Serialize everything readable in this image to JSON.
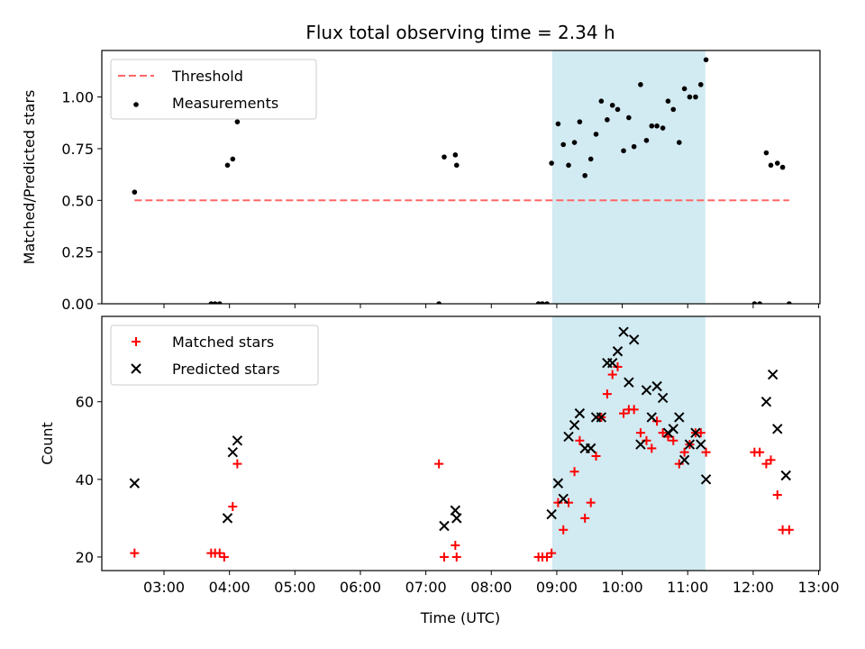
{
  "title": "Flux total observing time = 2.34 h",
  "xlabel": "Time (UTC)",
  "highlight": {
    "start_hour": 8.93,
    "end_hour": 11.27,
    "color": "#add8e6"
  },
  "x_ticks": [
    {
      "hour": 3,
      "label": "03:00"
    },
    {
      "hour": 4,
      "label": "04:00"
    },
    {
      "hour": 5,
      "label": "05:00"
    },
    {
      "hour": 6,
      "label": "06:00"
    },
    {
      "hour": 7,
      "label": "07:00"
    },
    {
      "hour": 8,
      "label": "08:00"
    },
    {
      "hour": 9,
      "label": "09:00"
    },
    {
      "hour": 10,
      "label": "10:00"
    },
    {
      "hour": 11,
      "label": "11:00"
    },
    {
      "hour": 12,
      "label": "12:00"
    },
    {
      "hour": 13,
      "label": "13:00"
    }
  ],
  "chart_data": [
    {
      "type": "scatter",
      "ylabel": "Matched/Predicted stars",
      "xlim": [
        2.05,
        13.02
      ],
      "ylim": [
        0,
        1.225
      ],
      "y_ticks": [
        {
          "value": 0.0,
          "label": "0.00"
        },
        {
          "value": 0.25,
          "label": "0.25"
        },
        {
          "value": 0.5,
          "label": "0.50"
        },
        {
          "value": 0.75,
          "label": "0.75"
        },
        {
          "value": 1.0,
          "label": "1.00"
        }
      ],
      "legend": {
        "position": "top-left",
        "entries": [
          "Threshold",
          "Measurements"
        ]
      },
      "threshold": {
        "name": "Threshold",
        "value": 0.5,
        "x_range": [
          2.55,
          12.55
        ],
        "color": "#ff6666"
      },
      "series": [
        {
          "name": "Measurements",
          "color": "#000000",
          "points": [
            [
              2.55,
              0.54
            ],
            [
              3.72,
              0
            ],
            [
              3.78,
              0
            ],
            [
              3.85,
              0
            ],
            [
              3.97,
              0.67
            ],
            [
              4.05,
              0.7
            ],
            [
              4.12,
              0.88
            ],
            [
              7.2,
              0
            ],
            [
              7.28,
              0.71
            ],
            [
              7.45,
              0.72
            ],
            [
              7.47,
              0.67
            ],
            [
              8.72,
              0
            ],
            [
              8.78,
              0
            ],
            [
              8.85,
              0
            ],
            [
              8.92,
              0.68
            ],
            [
              9.02,
              0.87
            ],
            [
              9.1,
              0.77
            ],
            [
              9.18,
              0.67
            ],
            [
              9.27,
              0.78
            ],
            [
              9.35,
              0.88
            ],
            [
              9.43,
              0.62
            ],
            [
              9.52,
              0.7
            ],
            [
              9.6,
              0.82
            ],
            [
              9.68,
              0.98
            ],
            [
              9.77,
              0.89
            ],
            [
              9.85,
              0.96
            ],
            [
              9.93,
              0.94
            ],
            [
              10.02,
              0.74
            ],
            [
              10.1,
              0.9
            ],
            [
              10.18,
              0.76
            ],
            [
              10.28,
              1.06
            ],
            [
              10.37,
              0.79
            ],
            [
              10.45,
              0.86
            ],
            [
              10.53,
              0.86
            ],
            [
              10.62,
              0.85
            ],
            [
              10.7,
              0.98
            ],
            [
              10.78,
              0.94
            ],
            [
              10.87,
              0.78
            ],
            [
              10.95,
              1.04
            ],
            [
              11.03,
              1.0
            ],
            [
              11.12,
              1.0
            ],
            [
              11.2,
              1.06
            ],
            [
              11.28,
              1.18
            ],
            [
              12.02,
              0
            ],
            [
              12.1,
              0
            ],
            [
              12.2,
              0.73
            ],
            [
              12.27,
              0.67
            ],
            [
              12.37,
              0.68
            ],
            [
              12.45,
              0.66
            ],
            [
              12.55,
              0
            ]
          ]
        }
      ]
    },
    {
      "type": "scatter",
      "ylabel": "Count",
      "xlim": [
        2.05,
        13.02
      ],
      "ylim": [
        16.5,
        82
      ],
      "y_ticks": [
        {
          "value": 20,
          "label": "20"
        },
        {
          "value": 40,
          "label": "40"
        },
        {
          "value": 60,
          "label": "60"
        }
      ],
      "legend": {
        "position": "top-left",
        "entries": [
          "Matched stars",
          "Predicted stars"
        ]
      },
      "series": [
        {
          "name": "Matched stars",
          "marker": "plus",
          "color": "#ff0000",
          "points": [
            [
              2.55,
              21
            ],
            [
              3.72,
              21
            ],
            [
              3.78,
              21
            ],
            [
              3.85,
              21
            ],
            [
              3.92,
              20
            ],
            [
              4.05,
              33
            ],
            [
              4.12,
              44
            ],
            [
              7.2,
              44
            ],
            [
              7.28,
              20
            ],
            [
              7.45,
              23
            ],
            [
              7.47,
              20
            ],
            [
              8.72,
              20
            ],
            [
              8.78,
              20
            ],
            [
              8.85,
              20
            ],
            [
              8.92,
              21
            ],
            [
              9.02,
              34
            ],
            [
              9.1,
              27
            ],
            [
              9.18,
              34
            ],
            [
              9.27,
              42
            ],
            [
              9.35,
              50
            ],
            [
              9.43,
              30
            ],
            [
              9.52,
              34
            ],
            [
              9.6,
              46
            ],
            [
              9.68,
              56
            ],
            [
              9.77,
              62
            ],
            [
              9.85,
              67
            ],
            [
              9.93,
              69
            ],
            [
              10.02,
              57
            ],
            [
              10.1,
              58
            ],
            [
              10.18,
              58
            ],
            [
              10.28,
              52
            ],
            [
              10.37,
              50
            ],
            [
              10.45,
              48
            ],
            [
              10.53,
              55
            ],
            [
              10.62,
              52
            ],
            [
              10.7,
              51
            ],
            [
              10.78,
              50
            ],
            [
              10.87,
              44
            ],
            [
              10.95,
              47
            ],
            [
              11.03,
              49
            ],
            [
              11.12,
              52
            ],
            [
              11.2,
              52
            ],
            [
              11.28,
              47
            ],
            [
              12.02,
              47
            ],
            [
              12.1,
              47
            ],
            [
              12.2,
              44
            ],
            [
              12.27,
              45
            ],
            [
              12.37,
              36
            ],
            [
              12.45,
              27
            ],
            [
              12.55,
              27
            ]
          ]
        },
        {
          "name": "Predicted stars",
          "marker": "x",
          "color": "#000000",
          "points": [
            [
              2.55,
              39
            ],
            [
              3.97,
              30
            ],
            [
              4.05,
              47
            ],
            [
              4.12,
              50
            ],
            [
              7.28,
              28
            ],
            [
              7.45,
              32
            ],
            [
              7.47,
              30
            ],
            [
              8.92,
              31
            ],
            [
              9.02,
              39
            ],
            [
              9.1,
              35
            ],
            [
              9.18,
              51
            ],
            [
              9.27,
              54
            ],
            [
              9.35,
              57
            ],
            [
              9.43,
              48
            ],
            [
              9.52,
              48
            ],
            [
              9.6,
              56
            ],
            [
              9.68,
              56
            ],
            [
              9.77,
              70
            ],
            [
              9.85,
              70
            ],
            [
              9.93,
              73
            ],
            [
              10.02,
              78
            ],
            [
              10.1,
              65
            ],
            [
              10.18,
              76
            ],
            [
              10.28,
              49
            ],
            [
              10.37,
              63
            ],
            [
              10.45,
              56
            ],
            [
              10.53,
              64
            ],
            [
              10.62,
              61
            ],
            [
              10.7,
              52
            ],
            [
              10.78,
              53
            ],
            [
              10.87,
              56
            ],
            [
              10.95,
              45
            ],
            [
              11.03,
              49
            ],
            [
              11.12,
              52
            ],
            [
              11.2,
              49
            ],
            [
              11.28,
              40
            ],
            [
              12.2,
              60
            ],
            [
              12.3,
              67
            ],
            [
              12.37,
              53
            ],
            [
              12.5,
              41
            ]
          ]
        }
      ]
    }
  ]
}
